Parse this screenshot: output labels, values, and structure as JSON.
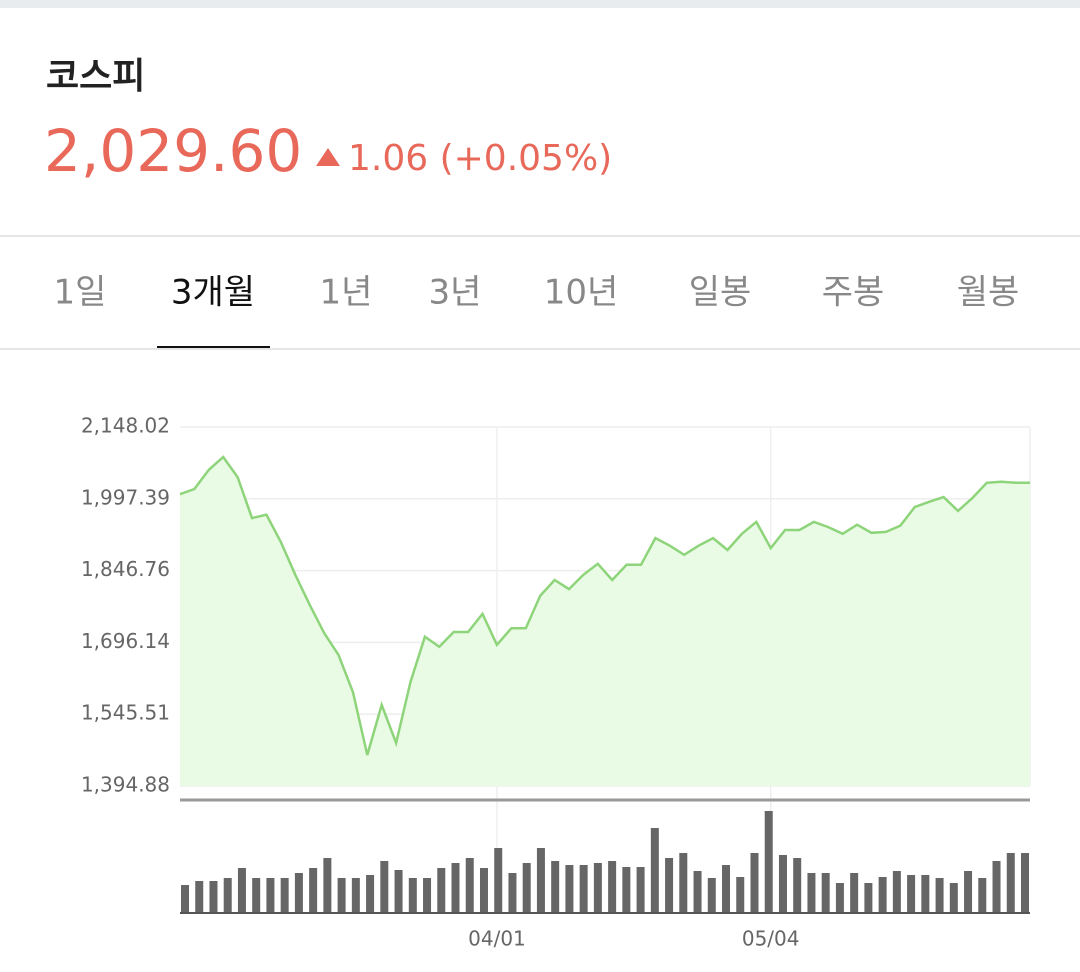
{
  "header": {
    "title": "코스피",
    "price": "2,029.60",
    "change": "1.06 (+0.05%)"
  },
  "tabs": [
    "1일",
    "3개월",
    "1년",
    "3년",
    "10년",
    "일봉",
    "주봉",
    "월봉"
  ],
  "active_tab": 1,
  "chart_data": {
    "type": "line",
    "categories": [
      null,
      null,
      null,
      null,
      null,
      null,
      null,
      null,
      null,
      null,
      null,
      null,
      null,
      null,
      null,
      null,
      null,
      null,
      null,
      null,
      null,
      null,
      "04/01",
      null,
      null,
      null,
      null,
      null,
      null,
      null,
      null,
      null,
      null,
      null,
      null,
      null,
      null,
      null,
      null,
      null,
      null,
      "05/04",
      null,
      null,
      null,
      null,
      null,
      null,
      null,
      null,
      null,
      null,
      null,
      null,
      null,
      null,
      null,
      null,
      null,
      null
    ],
    "series": [
      {
        "name": "코스피",
        "color": "#8ed47a",
        "fill": "#e9fbe5",
        "values": [
          2007,
          2018,
          2058,
          2085,
          2043,
          1957,
          1964,
          1907,
          1838,
          1775,
          1716,
          1670,
          1592,
          1460,
          1565,
          1485,
          1613,
          1708,
          1687,
          1718,
          1718,
          1756,
          1691,
          1726,
          1726,
          1794,
          1827,
          1808,
          1838,
          1861,
          1827,
          1859,
          1859,
          1915,
          1899,
          1880,
          1899,
          1915,
          1890,
          1924,
          1949,
          1894,
          1932,
          1932,
          1949,
          1938,
          1924,
          1943,
          1926,
          1928,
          1941,
          1980,
          1991,
          2001,
          1972,
          1999,
          2031,
          2033,
          2031,
          2031
        ]
      }
    ],
    "volume": {
      "color": "#666666",
      "values": [
        28,
        32,
        32,
        35,
        45,
        35,
        35,
        35,
        40,
        45,
        55,
        35,
        35,
        38,
        52,
        43,
        35,
        35,
        45,
        50,
        55,
        45,
        65,
        40,
        50,
        65,
        52,
        48,
        48,
        50,
        52,
        46,
        46,
        85,
        55,
        60,
        42,
        35,
        48,
        36,
        60,
        102,
        58,
        55,
        40,
        40,
        30,
        40,
        30,
        36,
        42,
        38,
        38,
        35,
        30,
        42,
        35,
        52,
        60,
        60
      ]
    },
    "ylim": [
      1394.88,
      2148.02
    ],
    "yticks": [
      {
        "value": 1394.88,
        "label": "1,394.88"
      },
      {
        "value": 1545.51,
        "label": "1,545.51"
      },
      {
        "value": 1696.14,
        "label": "1,696.14"
      },
      {
        "value": 1846.76,
        "label": "1,846.76"
      },
      {
        "value": 1997.39,
        "label": "1,997.39"
      },
      {
        "value": 2148.02,
        "label": "2,148.02"
      }
    ],
    "grid": true
  }
}
